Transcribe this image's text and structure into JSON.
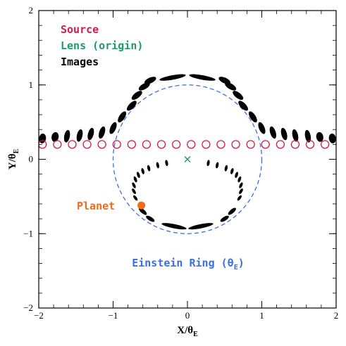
{
  "chart_data": {
    "type": "scatter",
    "xlabel_main": "X/θ",
    "xlabel_sub": "E",
    "ylabel_main": "Y/θ",
    "ylabel_sub": "E",
    "xlim": [
      -2,
      2
    ],
    "ylim": [
      -2,
      2
    ],
    "x_ticks": [
      -2,
      -1,
      0,
      1,
      2
    ],
    "y_ticks": [
      -2,
      -1,
      0,
      1,
      2
    ],
    "x_tick_labels": [
      "−2",
      "−1",
      "0",
      "1",
      "2"
    ],
    "y_tick_labels": [
      "−2",
      "−1",
      "0",
      "1",
      "2"
    ],
    "grid": false,
    "legend_position": "top-left",
    "legend": [
      {
        "label": "Source",
        "color": "#d6194b"
      },
      {
        "label": "Lens (origin)",
        "color": "#1a9a72"
      },
      {
        "label": "Images",
        "color": "#000000"
      }
    ],
    "source_positions": {
      "y": 0.2,
      "x": [
        -1.95,
        -1.75,
        -1.55,
        -1.35,
        -1.15,
        -0.95,
        -0.75,
        -0.55,
        -0.35,
        -0.15,
        0.05,
        0.25,
        0.45,
        0.65,
        0.85,
        1.05,
        1.25,
        1.45,
        1.65,
        1.85,
        2.05
      ],
      "marker": "open-circle",
      "color": "#d6194b"
    },
    "lens": {
      "x": 0,
      "y": 0,
      "marker": "x",
      "color": "#1a9a72"
    },
    "einstein_ring": {
      "radius": 1.0,
      "color": "#3b6fe0",
      "style": "dashed",
      "label_main": "Einstein Ring (θ",
      "label_sub": "E",
      "label_close": ")"
    },
    "planet": {
      "x": -0.62,
      "y": -0.62,
      "label": "Planet",
      "color": "#f26b1d"
    },
    "images": {
      "outer_arc": [
        {
          "x": -1.95,
          "y": 0.28
        },
        {
          "x": -1.78,
          "y": 0.3
        },
        {
          "x": -1.62,
          "y": 0.31
        },
        {
          "x": -1.45,
          "y": 0.32
        },
        {
          "x": -1.3,
          "y": 0.34
        },
        {
          "x": -1.15,
          "y": 0.36
        },
        {
          "x": -1.0,
          "y": 0.42
        },
        {
          "x": -0.88,
          "y": 0.57
        },
        {
          "x": -0.75,
          "y": 0.72
        },
        {
          "x": -0.68,
          "y": 0.86
        },
        {
          "x": -0.58,
          "y": 0.98
        },
        {
          "x": -0.5,
          "y": 1.06
        },
        {
          "x": -0.2,
          "y": 1.1
        },
        {
          "x": 0.2,
          "y": 1.1
        },
        {
          "x": 0.5,
          "y": 1.06
        },
        {
          "x": 0.58,
          "y": 0.98
        },
        {
          "x": 0.68,
          "y": 0.86
        },
        {
          "x": 0.75,
          "y": 0.72
        },
        {
          "x": 0.88,
          "y": 0.57
        },
        {
          "x": 1.0,
          "y": 0.42
        },
        {
          "x": 1.15,
          "y": 0.36
        },
        {
          "x": 1.3,
          "y": 0.34
        },
        {
          "x": 1.45,
          "y": 0.32
        },
        {
          "x": 1.62,
          "y": 0.31
        },
        {
          "x": 1.78,
          "y": 0.3
        },
        {
          "x": 1.95,
          "y": 0.28
        }
      ],
      "inner_arc": [
        {
          "x": -0.28,
          "y": -0.05
        },
        {
          "x": -0.4,
          "y": -0.08
        },
        {
          "x": -0.52,
          "y": -0.12
        },
        {
          "x": -0.6,
          "y": -0.16
        },
        {
          "x": -0.66,
          "y": -0.21
        },
        {
          "x": -0.7,
          "y": -0.27
        },
        {
          "x": -0.72,
          "y": -0.35
        },
        {
          "x": -0.72,
          "y": -0.43
        },
        {
          "x": -0.7,
          "y": -0.52
        },
        {
          "x": -0.6,
          "y": -0.7
        },
        {
          "x": -0.5,
          "y": -0.8
        },
        {
          "x": -0.18,
          "y": -0.9
        },
        {
          "x": 0.18,
          "y": -0.9
        },
        {
          "x": 0.5,
          "y": -0.8
        },
        {
          "x": 0.6,
          "y": -0.7
        },
        {
          "x": 0.7,
          "y": -0.52
        },
        {
          "x": 0.72,
          "y": -0.43
        },
        {
          "x": 0.72,
          "y": -0.35
        },
        {
          "x": 0.7,
          "y": -0.27
        },
        {
          "x": 0.66,
          "y": -0.21
        },
        {
          "x": 0.6,
          "y": -0.16
        },
        {
          "x": 0.52,
          "y": -0.12
        },
        {
          "x": 0.4,
          "y": -0.08
        },
        {
          "x": 0.28,
          "y": -0.05
        }
      ]
    }
  }
}
